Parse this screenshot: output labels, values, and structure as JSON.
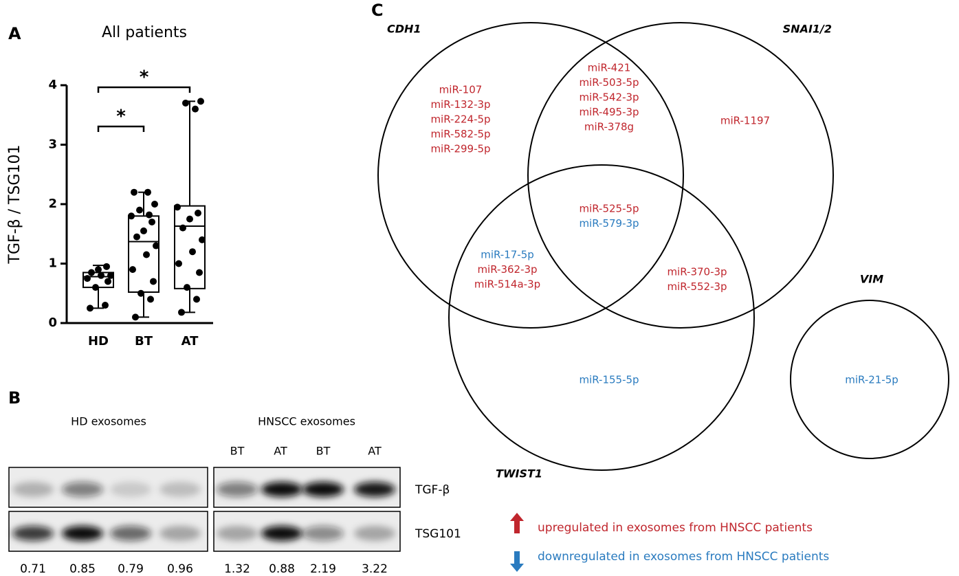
{
  "panels": [
    "A",
    "B",
    "C"
  ],
  "chart_data": {
    "type": "box",
    "title": "All patients",
    "ylabel": "TGF-β / TSG101",
    "categories": [
      "HD",
      "BT",
      "AT"
    ],
    "boxes": [
      {
        "min": 0.25,
        "q1": 0.6,
        "median": 0.78,
        "q3": 0.85,
        "max": 0.97,
        "points": [
          0.25,
          0.3,
          0.6,
          0.7,
          0.75,
          0.8,
          0.8,
          0.85,
          0.9,
          0.95
        ]
      },
      {
        "min": 0.1,
        "q1": 0.52,
        "median": 1.37,
        "q3": 1.8,
        "max": 2.2,
        "points": [
          0.1,
          0.4,
          0.5,
          0.7,
          0.9,
          1.15,
          1.3,
          1.45,
          1.55,
          1.7,
          1.8,
          1.82,
          1.9,
          2.0,
          2.2,
          2.2
        ]
      },
      {
        "min": 0.18,
        "q1": 0.58,
        "median": 1.63,
        "q3": 1.97,
        "max": 3.73,
        "points": [
          0.18,
          0.4,
          0.6,
          0.85,
          1.0,
          1.2,
          1.4,
          1.6,
          1.75,
          1.85,
          1.95,
          3.6,
          3.7,
          3.73
        ]
      }
    ],
    "color": "#000000",
    "ylim": [
      0,
      4
    ],
    "yticks": [
      0,
      1,
      2,
      3,
      4
    ],
    "annotations": [
      "*",
      "*"
    ]
  },
  "blot": {
    "groups": [
      "HD exosomes",
      "HNSCC exosomes"
    ],
    "lanes": [
      "BT",
      "AT",
      "BT",
      "AT"
    ],
    "rows": [
      "TGF-β",
      "TSG101"
    ],
    "ratios": [
      "0.71",
      "0.85",
      "0.79",
      "0.96",
      "1.32",
      "0.88",
      "2.19",
      "3.22"
    ]
  },
  "venn": {
    "sets": [
      "CDH1",
      "SNAI1/2",
      "TWIST1",
      "VIM"
    ],
    "groups": [
      [
        {
          "label": "miR-107",
          "color": "#c0262d"
        },
        {
          "label": "miR-132-3p",
          "color": "#c0262d"
        },
        {
          "label": "miR-224-5p",
          "color": "#c0262d"
        },
        {
          "label": "miR-582-5p",
          "color": "#c0262d"
        },
        {
          "label": "miR-299-5p",
          "color": "#c0262d"
        }
      ],
      [
        {
          "label": "miR-421",
          "color": "#c0262d"
        },
        {
          "label": "miR-503-5p",
          "color": "#c0262d"
        },
        {
          "label": "miR-542-3p",
          "color": "#c0262d"
        },
        {
          "label": "miR-495-3p",
          "color": "#c0262d"
        },
        {
          "label": "miR-378g",
          "color": "#c0262d"
        }
      ],
      [
        {
          "label": "miR-1197",
          "color": "#c0262d"
        }
      ],
      [
        {
          "label": "miR-525-5p",
          "color": "#c0262d"
        },
        {
          "label": "miR-579-3p",
          "color": "#2a7bbf"
        }
      ],
      [
        {
          "label": "miR-17-5p",
          "color": "#2a7bbf"
        },
        {
          "label": "miR-362-3p",
          "color": "#c0262d"
        },
        {
          "label": "miR-514a-3p",
          "color": "#c0262d"
        }
      ],
      [
        {
          "label": "miR-370-3p",
          "color": "#c0262d"
        },
        {
          "label": "miR-552-3p",
          "color": "#c0262d"
        }
      ],
      [
        {
          "label": "miR-155-5p",
          "color": "#2a7bbf"
        }
      ],
      [
        {
          "label": "miR-21-5p",
          "color": "#2a7bbf"
        }
      ]
    ],
    "legend": [
      {
        "label": "upregulated in exosomes from HNSCC patients",
        "color": "#c0262d"
      },
      {
        "label": "downregulated in exosomes from HNSCC patients",
        "color": "#2a7bbf"
      }
    ]
  }
}
